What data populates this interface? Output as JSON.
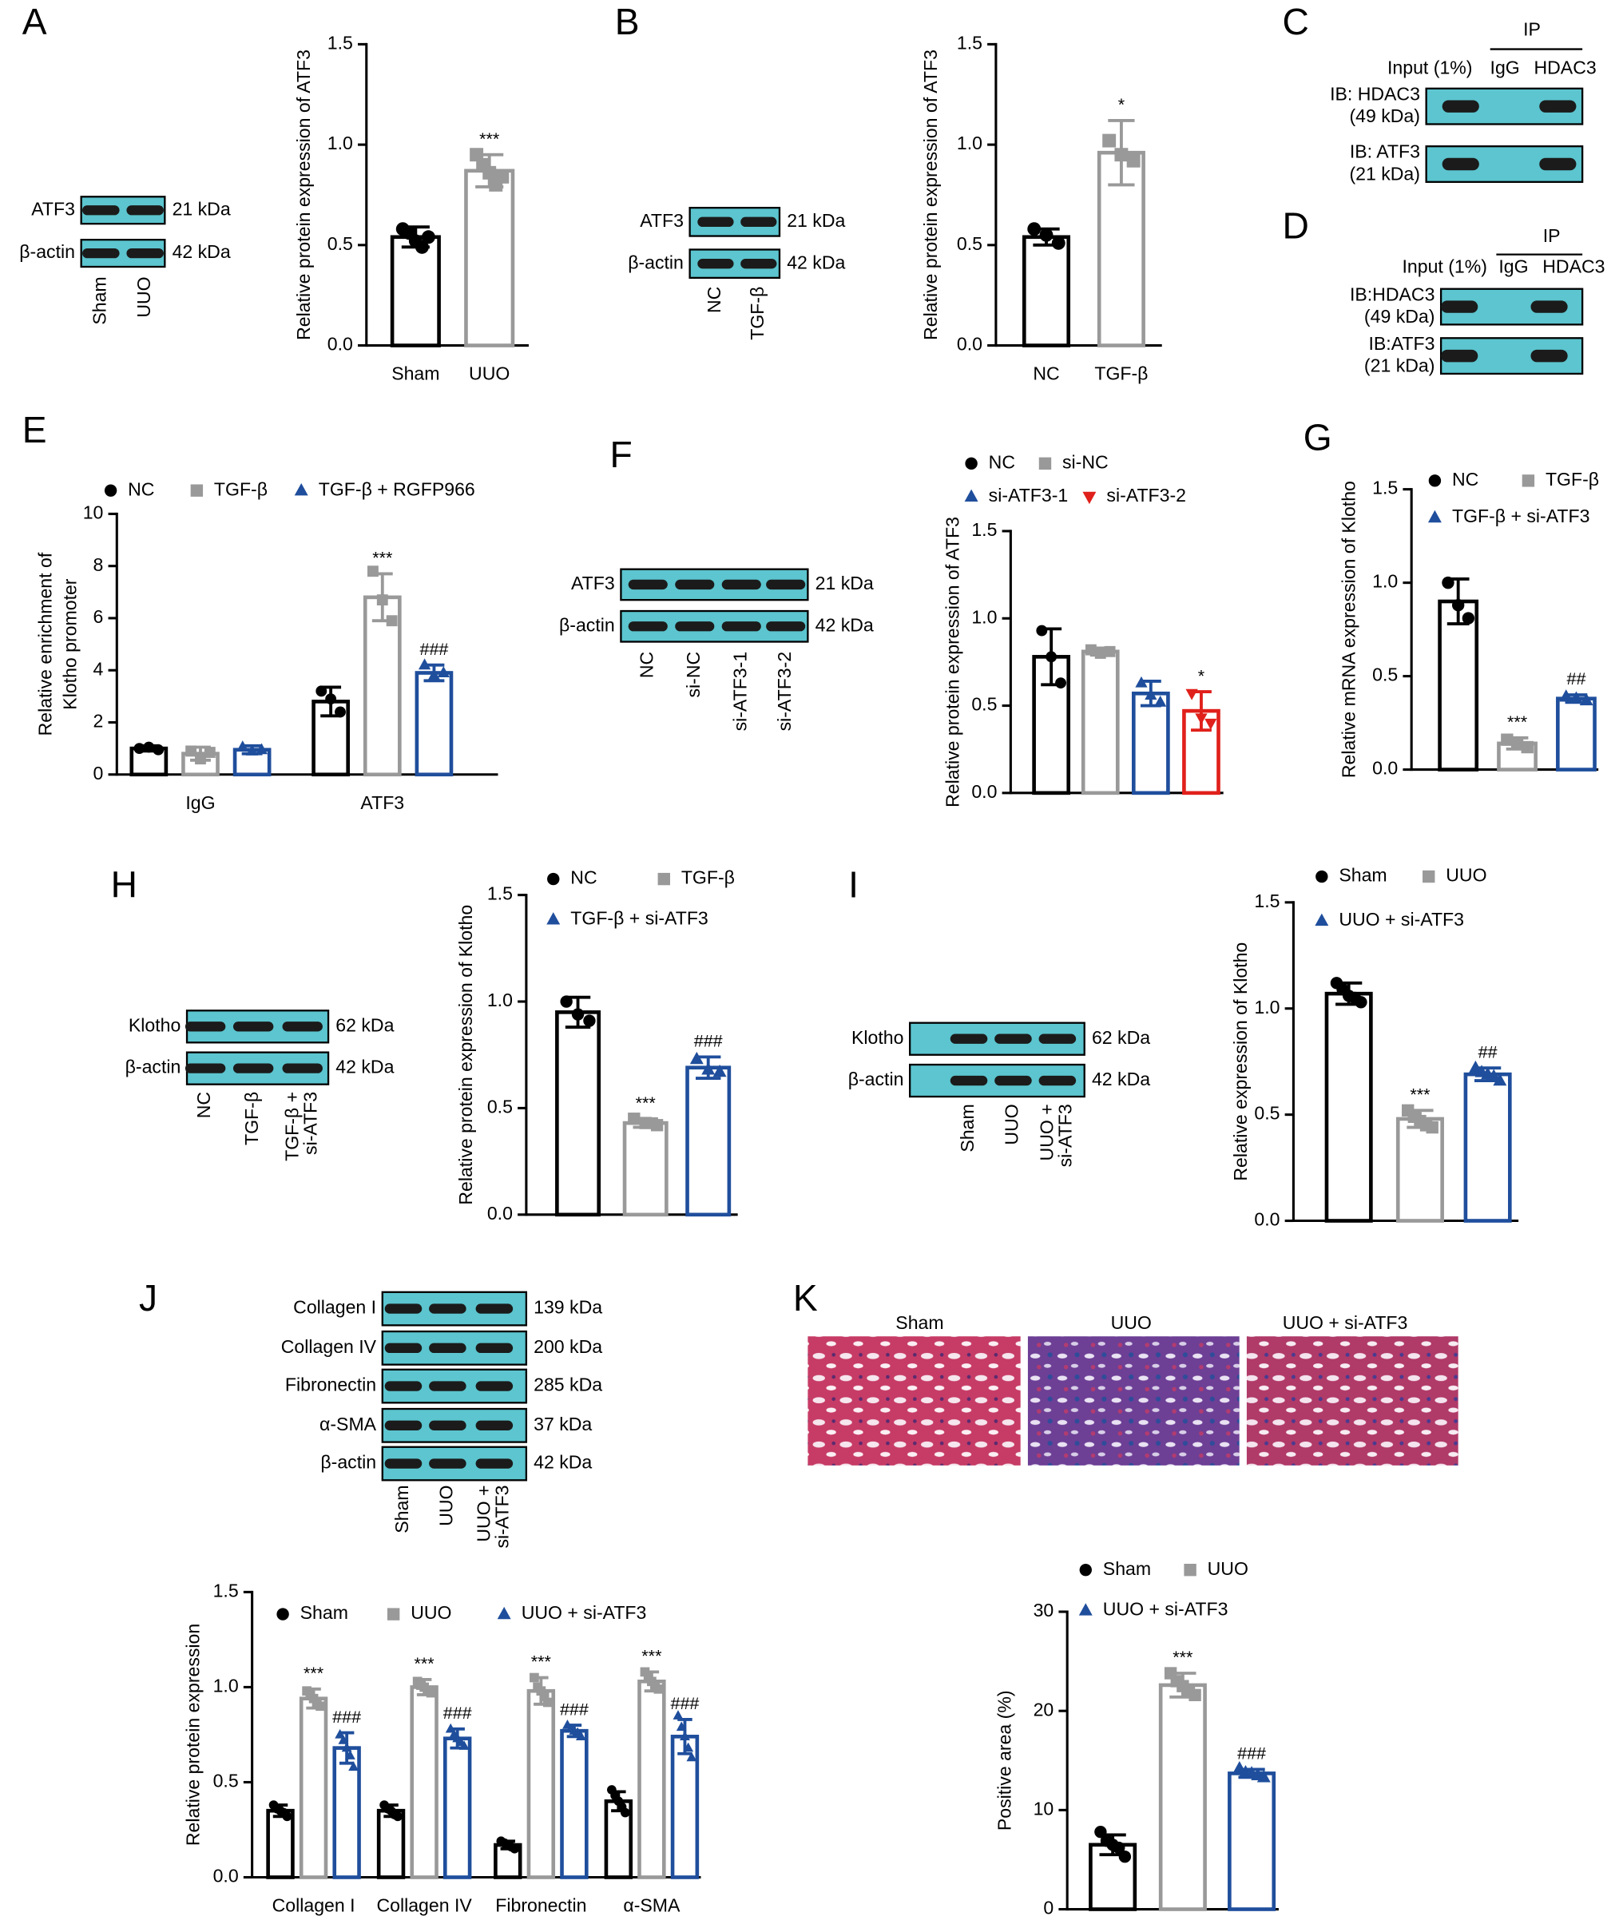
{
  "panel_labels": [
    "A",
    "B",
    "C",
    "D",
    "E",
    "F",
    "G",
    "H",
    "I",
    "J",
    "K"
  ],
  "chart_data": [
    {
      "type": "bar",
      "ylabel": "Relative protein expression of ATF3",
      "categories": [
        "Sham",
        "UUO"
      ],
      "values": [
        0.54,
        0.87
      ],
      "errors": [
        0.05,
        0.08
      ],
      "points": [
        [
          0.58,
          0.56,
          0.52,
          0.49,
          0.54
        ],
        [
          0.95,
          0.9,
          0.86,
          0.8,
          0.84
        ]
      ],
      "colors": [
        "#000000",
        "#999999"
      ],
      "markers": [
        "circle",
        "square"
      ],
      "annotations": [
        null,
        "***"
      ],
      "ylim": [
        0,
        1.5
      ],
      "yticks": [
        {
          "value": 0,
          "label": "0.0"
        },
        {
          "value": 0.5,
          "label": "0.5"
        },
        {
          "value": 1,
          "label": "1.0"
        },
        {
          "value": 1.5,
          "label": "1.5"
        }
      ]
    },
    {
      "type": "bar",
      "ylabel": "Relative protein expression of ATF3",
      "categories": [
        "NC",
        "TGF-β"
      ],
      "values": [
        0.54,
        0.96
      ],
      "errors": [
        0.04,
        0.16
      ],
      "points": [
        [
          0.58,
          0.55,
          0.51
        ],
        [
          1.02,
          0.95,
          0.92
        ]
      ],
      "colors": [
        "#000000",
        "#999999"
      ],
      "markers": [
        "circle",
        "square"
      ],
      "annotations": [
        null,
        "*"
      ],
      "ylim": [
        0,
        1.5
      ],
      "yticks": [
        {
          "value": 0,
          "label": "0.0"
        },
        {
          "value": 0.5,
          "label": "0.5"
        },
        {
          "value": 1,
          "label": "1.0"
        },
        {
          "value": 1.5,
          "label": "1.5"
        }
      ]
    },
    {
      "type": "bar",
      "ylabel": [
        "Relative enrichment of",
        "Klotho promoter"
      ],
      "categories": [
        "IgG",
        "ATF3"
      ],
      "series": [
        {
          "name": "NC",
          "color": "#000000",
          "marker": "circle",
          "values": [
            1.0,
            2.8
          ],
          "errors": [
            0.1,
            0.55
          ],
          "points": [
            [
              1.0,
              1.05,
              0.95
            ],
            [
              3.2,
              2.9,
              2.4
            ]
          ],
          "annotations": [
            null,
            null
          ]
        },
        {
          "name": "TGF-β",
          "color": "#999999",
          "marker": "square",
          "values": [
            0.8,
            6.8
          ],
          "errors": [
            0.25,
            0.9
          ],
          "points": [
            [
              0.9,
              0.6,
              0.85
            ],
            [
              7.8,
              6.7,
              5.9
            ]
          ],
          "annotations": [
            null,
            "***"
          ]
        },
        {
          "name": "TGF-β + RGFP966",
          "color": "#1f4e9c",
          "marker": "triangle",
          "values": [
            0.95,
            3.9
          ],
          "errors": [
            0.15,
            0.3
          ],
          "points": [
            [
              1.05,
              0.9,
              0.95
            ],
            [
              4.2,
              3.8,
              3.9
            ]
          ],
          "annotations": [
            null,
            "###"
          ]
        }
      ],
      "ylim": [
        0,
        10
      ],
      "yticks": [
        0,
        2,
        4,
        6,
        8,
        10
      ]
    },
    {
      "type": "bar",
      "ylabel": "Relative protein expression of ATF3",
      "series": [
        {
          "name": "NC",
          "color": "#000000",
          "marker": "circle",
          "values": [
            0.78
          ],
          "errors": [
            0.16
          ],
          "points": [
            [
              0.93,
              0.78,
              0.63
            ]
          ],
          "annotations": [
            null
          ]
        },
        {
          "name": "si-NC",
          "color": "#999999",
          "marker": "square",
          "values": [
            0.81
          ],
          "errors": [
            0.02
          ],
          "points": [
            [
              0.82,
              0.8,
              0.81
            ]
          ],
          "annotations": [
            null
          ]
        },
        {
          "name": "si-ATF3-1",
          "color": "#1f4e9c",
          "marker": "triangle",
          "values": [
            0.57
          ],
          "errors": [
            0.07
          ],
          "points": [
            [
              0.63,
              0.56,
              0.52
            ]
          ],
          "annotations": [
            null
          ]
        },
        {
          "name": "si-ATF3-2",
          "color": "#e0201b",
          "marker": "triangle-down",
          "values": [
            0.47
          ],
          "errors": [
            0.11
          ],
          "points": [
            [
              0.57,
              0.43,
              0.4
            ]
          ],
          "annotations": [
            "*"
          ]
        }
      ],
      "ylim": [
        0,
        1.5
      ],
      "yticks": [
        {
          "value": 0,
          "label": "0.0"
        },
        {
          "value": 0.5,
          "label": "0.5"
        },
        {
          "value": 1,
          "label": "1.0"
        },
        {
          "value": 1.5,
          "label": "1.5"
        }
      ]
    },
    {
      "type": "bar",
      "ylabel": "Relative mRNA expression of Klotho",
      "series": [
        {
          "name": "NC",
          "color": "#000000",
          "marker": "circle",
          "values": [
            0.9
          ],
          "errors": [
            0.12
          ],
          "points": [
            [
              1.0,
              0.88,
              0.81
            ]
          ],
          "annotations": [
            null
          ]
        },
        {
          "name": "TGF-β",
          "color": "#999999",
          "marker": "square",
          "values": [
            0.14
          ],
          "errors": [
            0.03
          ],
          "points": [
            [
              0.16,
              0.14,
              0.12
            ]
          ],
          "annotations": [
            "***"
          ]
        },
        {
          "name": "TGF-β + si-ATF3",
          "color": "#1f4e9c",
          "marker": "triangle",
          "values": [
            0.38
          ],
          "errors": [
            0.02
          ],
          "points": [
            [
              0.39,
              0.38,
              0.37
            ]
          ],
          "annotations": [
            "##"
          ]
        }
      ],
      "ylim": [
        0,
        1.5
      ],
      "yticks": [
        {
          "value": 0,
          "label": "0.0"
        },
        {
          "value": 0.5,
          "label": "0.5"
        },
        {
          "value": 1,
          "label": "1.0"
        },
        {
          "value": 1.5,
          "label": "1.5"
        }
      ]
    },
    {
      "type": "bar",
      "ylabel": "Relative protein expression of Klotho",
      "series": [
        {
          "name": "NC",
          "color": "#000000",
          "marker": "circle",
          "values": [
            0.95
          ],
          "errors": [
            0.07
          ],
          "points": [
            [
              1.0,
              0.94,
              0.91
            ]
          ],
          "annotations": [
            null
          ]
        },
        {
          "name": "TGF-β",
          "color": "#999999",
          "marker": "square",
          "values": [
            0.43
          ],
          "errors": [
            0.02
          ],
          "points": [
            [
              0.45,
              0.43,
              0.42
            ]
          ],
          "annotations": [
            "***"
          ]
        },
        {
          "name": "TGF-β + si-ATF3",
          "color": "#1f4e9c",
          "marker": "triangle",
          "values": [
            0.69
          ],
          "errors": [
            0.05
          ],
          "points": [
            [
              0.73,
              0.68,
              0.67
            ]
          ],
          "annotations": [
            "###"
          ]
        }
      ],
      "ylim": [
        0,
        1.5
      ],
      "yticks": [
        {
          "value": 0,
          "label": "0.0"
        },
        {
          "value": 0.5,
          "label": "0.5"
        },
        {
          "value": 1,
          "label": "1.0"
        },
        {
          "value": 1.5,
          "label": "1.5"
        }
      ]
    },
    {
      "type": "bar",
      "ylabel": "Relative expression of Klotho",
      "series": [
        {
          "name": "Sham",
          "color": "#000000",
          "marker": "circle",
          "values": [
            1.07
          ],
          "errors": [
            0.05
          ],
          "points": [
            [
              1.12,
              1.09,
              1.06,
              1.05,
              1.03
            ]
          ],
          "annotations": [
            null
          ]
        },
        {
          "name": "UUO",
          "color": "#999999",
          "marker": "square",
          "values": [
            0.48
          ],
          "errors": [
            0.04
          ],
          "points": [
            [
              0.52,
              0.49,
              0.47,
              0.45,
              0.44
            ]
          ],
          "annotations": [
            "***"
          ]
        },
        {
          "name": "UUO + si-ATF3",
          "color": "#1f4e9c",
          "marker": "triangle",
          "values": [
            0.69
          ],
          "errors": [
            0.03
          ],
          "points": [
            [
              0.72,
              0.7,
              0.69,
              0.68,
              0.66
            ]
          ],
          "annotations": [
            "##"
          ]
        }
      ],
      "ylim": [
        0,
        1.5
      ],
      "yticks": [
        {
          "value": 0,
          "label": "0.0"
        },
        {
          "value": 0.5,
          "label": "0.5"
        },
        {
          "value": 1,
          "label": "1.0"
        },
        {
          "value": 1.5,
          "label": "1.5"
        }
      ]
    },
    {
      "type": "bar",
      "ylabel": "Relative protein expression",
      "categories": [
        "Collagen I",
        "Collagen IV",
        "Fibronectin",
        "α-SMA"
      ],
      "series": [
        {
          "name": "Sham",
          "color": "#000000",
          "marker": "circle",
          "values": [
            0.35,
            0.35,
            0.17,
            0.4
          ],
          "errors": [
            0.03,
            0.03,
            0.02,
            0.05
          ],
          "points": [
            [
              0.38,
              0.36,
              0.35,
              0.34,
              0.32
            ],
            [
              0.38,
              0.36,
              0.35,
              0.33,
              0.32
            ],
            [
              0.19,
              0.18,
              0.17,
              0.16,
              0.15
            ],
            [
              0.46,
              0.43,
              0.4,
              0.37,
              0.34
            ]
          ],
          "annotations": [
            null,
            null,
            null,
            null
          ]
        },
        {
          "name": "UUO",
          "color": "#999999",
          "marker": "square",
          "values": [
            0.94,
            1.0,
            0.98,
            1.03
          ],
          "errors": [
            0.05,
            0.04,
            0.07,
            0.05
          ],
          "points": [
            [
              0.98,
              0.96,
              0.94,
              0.92,
              0.9
            ],
            [
              1.03,
              1.01,
              1.0,
              0.98,
              0.97
            ],
            [
              1.05,
              1.0,
              0.98,
              0.95,
              0.92
            ],
            [
              1.08,
              1.05,
              1.03,
              1.0,
              0.99
            ]
          ],
          "annotations": [
            "***",
            "***",
            "***",
            "***"
          ]
        },
        {
          "name": "UUO + si-ATF3",
          "color": "#1f4e9c",
          "marker": "triangle",
          "values": [
            0.68,
            0.73,
            0.77,
            0.74
          ],
          "errors": [
            0.08,
            0.05,
            0.03,
            0.09
          ],
          "points": [
            [
              0.75,
              0.72,
              0.68,
              0.64,
              0.58
            ],
            [
              0.78,
              0.75,
              0.73,
              0.71,
              0.69
            ],
            [
              0.8,
              0.78,
              0.77,
              0.76,
              0.74
            ],
            [
              0.85,
              0.79,
              0.74,
              0.68,
              0.63
            ]
          ],
          "annotations": [
            "###",
            "###",
            "###",
            "###"
          ]
        }
      ],
      "ylim": [
        0,
        1.5
      ],
      "yticks": [
        {
          "value": 0,
          "label": "0.0"
        },
        {
          "value": 0.5,
          "label": "0.5"
        },
        {
          "value": 1,
          "label": "1.0"
        },
        {
          "value": 1.5,
          "label": "1.5"
        }
      ]
    },
    {
      "type": "bar",
      "ylabel": "Positive area (%)",
      "series": [
        {
          "name": "Sham",
          "color": "#000000",
          "marker": "circle",
          "values": [
            6.5
          ],
          "errors": [
            1.0
          ],
          "points": [
            [
              7.8,
              6.9,
              6.5,
              6.2,
              5.3
            ]
          ],
          "annotations": [
            null
          ]
        },
        {
          "name": "UUO",
          "color": "#999999",
          "marker": "square",
          "values": [
            22.6
          ],
          "errors": [
            1.2
          ],
          "points": [
            [
              23.8,
              23.0,
              22.5,
              22.0,
              21.6
            ]
          ],
          "annotations": [
            "***"
          ]
        },
        {
          "name": "UUO + si-ATF3",
          "color": "#1f4e9c",
          "marker": "triangle",
          "values": [
            13.7
          ],
          "errors": [
            0.4
          ],
          "points": [
            [
              14.2,
              13.8,
              13.7,
              13.5,
              13.3
            ]
          ],
          "annotations": [
            "###"
          ]
        }
      ],
      "ylim": [
        0,
        30
      ],
      "yticks": [
        0,
        10,
        20,
        30
      ]
    }
  ],
  "blots": [
    {
      "rows": [
        {
          "label": "ATF3",
          "size": "21 kDa"
        },
        {
          "label": "β-actin",
          "size": "42 kDa"
        }
      ],
      "lanes": [
        "Sham",
        "UUO"
      ]
    },
    {
      "rows": [
        {
          "label": "ATF3",
          "size": "21 kDa"
        },
        {
          "label": "β-actin",
          "size": "42 kDa"
        }
      ],
      "lanes": [
        "NC",
        "TGF-β"
      ]
    },
    {
      "rows": [
        {
          "label": "ATF3",
          "size": "21 kDa"
        },
        {
          "label": "β-actin",
          "size": "42 kDa"
        }
      ],
      "lanes": [
        "NC",
        "si-NC",
        "si-ATF3-1",
        "si-ATF3-2"
      ]
    },
    {
      "rows": [
        {
          "label": "Klotho",
          "size": "62 kDa"
        },
        {
          "label": "β-actin",
          "size": "42 kDa"
        }
      ],
      "lanes": [
        "NC",
        "TGF-β",
        [
          "TGF-β +",
          "si-ATF3"
        ]
      ]
    },
    {
      "rows": [
        {
          "label": "Klotho",
          "size": "62 kDa"
        },
        {
          "label": "β-actin",
          "size": "42 kDa"
        }
      ],
      "lanes": [
        "Sham",
        "UUO",
        [
          "UUO +",
          "si-ATF3"
        ]
      ]
    },
    {
      "rows": [
        {
          "label": "Collagen I",
          "size": "139 kDa"
        },
        {
          "label": "Collagen IV",
          "size": "200 kDa"
        },
        {
          "label": "Fibronectin",
          "size": "285 kDa"
        },
        {
          "label": "α-SMA",
          "size": "37 kDa"
        },
        {
          "label": "β-actin",
          "size": "42 kDa"
        }
      ],
      "lanes": [
        "Sham",
        "UUO",
        [
          "UUO +",
          "si-ATF3"
        ]
      ]
    }
  ],
  "coip": [
    {
      "ip_label": "IP",
      "columns": [
        "Input (1%)",
        "IgG",
        "HDAC3"
      ],
      "rows": [
        [
          "IB: HDAC3",
          "(49 kDa)"
        ],
        [
          "IB: ATF3",
          "(21 kDa)"
        ]
      ]
    },
    {
      "ip_label": "IP",
      "columns": [
        "Input (1%)",
        "IgG",
        "HDAC3"
      ],
      "rows": [
        [
          "IB:HDAC3",
          "(49 kDa)"
        ],
        [
          "IB:ATF3",
          "(21 kDa)"
        ]
      ]
    }
  ],
  "histology": {
    "labels": [
      "Sham",
      "UUO",
      "UUO + si-ATF3"
    ]
  }
}
